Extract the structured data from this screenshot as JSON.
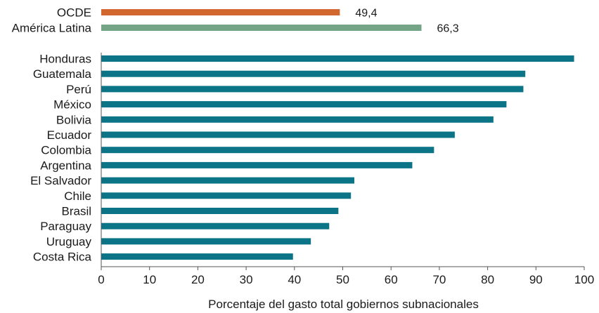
{
  "chart_data": {
    "type": "bar",
    "orientation": "horizontal",
    "xlabel": "Porcentaje del gasto total gobiernos subnacionales",
    "xlim": [
      0,
      100
    ],
    "xticks": [
      "0",
      "10",
      "20",
      "30",
      "40",
      "50",
      "60",
      "70",
      "80",
      "90",
      "100"
    ],
    "grid": false,
    "highlight": [
      {
        "category": "OCDE",
        "value": 49.4,
        "label": "49,4",
        "color": "#d2672f"
      },
      {
        "category": "América Latina",
        "value": 66.3,
        "label": "66,3",
        "color": "#73a586"
      }
    ],
    "bars": [
      {
        "category": "Honduras",
        "value": 97.9
      },
      {
        "category": "Guatemala",
        "value": 87.8
      },
      {
        "category": "Perú",
        "value": 87.4
      },
      {
        "category": "México",
        "value": 83.9
      },
      {
        "category": "Bolivia",
        "value": 81.2
      },
      {
        "category": "Ecuador",
        "value": 73.2
      },
      {
        "category": "Colombia",
        "value": 68.9
      },
      {
        "category": "Argentina",
        "value": 64.4
      },
      {
        "category": "El Salvador",
        "value": 52.4
      },
      {
        "category": "Chile",
        "value": 51.7
      },
      {
        "category": "Brasil",
        "value": 49.1
      },
      {
        "category": "Paraguay",
        "value": 47.2
      },
      {
        "category": "Uruguay",
        "value": 43.4
      },
      {
        "category": "Costa Rica",
        "value": 39.7
      }
    ],
    "bar_color": "#0b7486"
  }
}
